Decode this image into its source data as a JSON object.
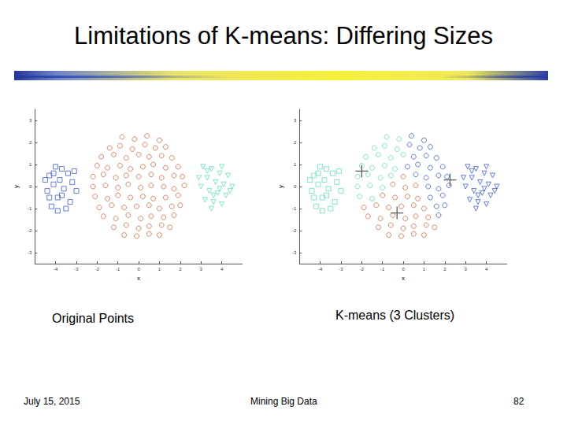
{
  "slide": {
    "title": "Limitations of K-means: Differing Sizes",
    "footer_left": "July 15, 2015",
    "footer_center": "Mining Big Data",
    "page_number": 82
  },
  "chart_data": [
    {
      "type": "scatter",
      "title": "Original Points",
      "xlabel": "x",
      "ylabel": "y",
      "xlim": [
        -5,
        5
      ],
      "ylim": [
        -3.5,
        3.5
      ],
      "xticks": [
        -4,
        -3,
        -2,
        -1,
        0,
        1,
        2,
        3,
        4
      ],
      "yticks": [
        -3,
        -2,
        -1,
        0,
        1,
        2,
        3
      ],
      "grid": false,
      "series": [
        {
          "color": "#3b5bd6",
          "marker": "square",
          "values": [
            [
              -4.3,
              0.5
            ],
            [
              -4.1,
              0.1
            ],
            [
              -4.4,
              -0.2
            ],
            [
              -3.9,
              -0.5
            ],
            [
              -4.2,
              -0.9
            ],
            [
              -3.7,
              0.8
            ],
            [
              -3.4,
              0.6
            ],
            [
              -3.1,
              0.7
            ],
            [
              -3.6,
              -0.1
            ],
            [
              -3.3,
              -0.7
            ],
            [
              -3.0,
              -0.2
            ],
            [
              -4.0,
              0.9
            ],
            [
              -3.8,
              0.3
            ],
            [
              -4.5,
              0.3
            ],
            [
              -3.5,
              -1.0
            ],
            [
              -3.9,
              -1.1
            ],
            [
              -4.3,
              -0.5
            ],
            [
              -3.2,
              0.2
            ],
            [
              -3.7,
              -0.4
            ],
            [
              -4.1,
              0.6
            ]
          ]
        },
        {
          "color": "#d9663f",
          "marker": "circle",
          "values": [
            [
              -0.8,
              2.25
            ],
            [
              -0.2,
              2.15
            ],
            [
              0.4,
              2.3
            ],
            [
              1.0,
              2.1
            ],
            [
              -1.4,
              1.75
            ],
            [
              -0.9,
              1.85
            ],
            [
              -0.3,
              1.7
            ],
            [
              0.3,
              1.9
            ],
            [
              0.8,
              1.75
            ],
            [
              1.3,
              1.8
            ],
            [
              -1.8,
              1.35
            ],
            [
              -1.2,
              1.45
            ],
            [
              -0.6,
              1.3
            ],
            [
              0.0,
              1.45
            ],
            [
              0.5,
              1.35
            ],
            [
              1.1,
              1.4
            ],
            [
              1.6,
              1.3
            ],
            [
              -2.0,
              0.95
            ],
            [
              -1.5,
              0.85
            ],
            [
              -0.9,
              0.95
            ],
            [
              -0.4,
              0.8
            ],
            [
              0.2,
              0.9
            ],
            [
              0.7,
              1.0
            ],
            [
              1.3,
              0.85
            ],
            [
              1.9,
              0.9
            ],
            [
              -2.2,
              0.45
            ],
            [
              -1.7,
              0.55
            ],
            [
              -1.1,
              0.4
            ],
            [
              -0.6,
              0.5
            ],
            [
              0.0,
              0.45
            ],
            [
              0.6,
              0.55
            ],
            [
              1.1,
              0.4
            ],
            [
              1.7,
              0.5
            ],
            [
              2.1,
              0.45
            ],
            [
              -2.2,
              0.0
            ],
            [
              -1.6,
              0.05
            ],
            [
              -1.0,
              -0.05
            ],
            [
              -0.5,
              0.1
            ],
            [
              0.1,
              -0.05
            ],
            [
              0.6,
              0.05
            ],
            [
              1.2,
              0.0
            ],
            [
              1.7,
              -0.1
            ],
            [
              2.2,
              0.05
            ],
            [
              -2.1,
              -0.45
            ],
            [
              -1.5,
              -0.55
            ],
            [
              -1.0,
              -0.4
            ],
            [
              -0.4,
              -0.5
            ],
            [
              0.2,
              -0.45
            ],
            [
              0.7,
              -0.55
            ],
            [
              1.3,
              -0.5
            ],
            [
              1.9,
              -0.4
            ],
            [
              -1.9,
              -0.95
            ],
            [
              -1.3,
              -0.85
            ],
            [
              -0.7,
              -0.95
            ],
            [
              -0.1,
              -0.9
            ],
            [
              0.5,
              -0.85
            ],
            [
              1.0,
              -1.0
            ],
            [
              1.6,
              -0.9
            ],
            [
              2.0,
              -0.85
            ],
            [
              -1.7,
              -1.35
            ],
            [
              -1.1,
              -1.45
            ],
            [
              -0.5,
              -1.3
            ],
            [
              0.1,
              -1.45
            ],
            [
              0.6,
              -1.35
            ],
            [
              1.2,
              -1.4
            ],
            [
              1.7,
              -1.3
            ],
            [
              -1.2,
              -1.85
            ],
            [
              -0.6,
              -1.75
            ],
            [
              0.0,
              -1.9
            ],
            [
              0.5,
              -1.8
            ],
            [
              1.1,
              -1.75
            ],
            [
              1.5,
              -1.85
            ],
            [
              -0.7,
              -2.2
            ],
            [
              -0.1,
              -2.25
            ],
            [
              0.5,
              -2.15
            ],
            [
              1.0,
              -2.2
            ]
          ]
        },
        {
          "color": "#5fe0bd",
          "marker": "triangle_down",
          "values": [
            [
              3.1,
              0.9
            ],
            [
              3.5,
              0.8
            ],
            [
              3.9,
              0.6
            ],
            [
              4.3,
              0.5
            ],
            [
              3.3,
              0.4
            ],
            [
              3.7,
              0.2
            ],
            [
              4.1,
              0.1
            ],
            [
              4.5,
              0.0
            ],
            [
              3.0,
              0.0
            ],
            [
              3.4,
              -0.2
            ],
            [
              3.8,
              -0.3
            ],
            [
              4.2,
              -0.4
            ],
            [
              3.2,
              -0.6
            ],
            [
              3.6,
              -0.7
            ],
            [
              4.0,
              -0.8
            ],
            [
              3.5,
              -1.0
            ],
            [
              4.4,
              -0.2
            ],
            [
              3.9,
              -0.1
            ],
            [
              3.3,
              0.7
            ],
            [
              4.0,
              0.9
            ],
            [
              2.9,
              0.4
            ],
            [
              3.6,
              -0.4
            ]
          ]
        }
      ]
    },
    {
      "type": "scatter",
      "title": "K-means (3 Clusters)",
      "xlabel": "x",
      "ylabel": "y",
      "xlim": [
        -5,
        5
      ],
      "ylim": [
        -3.5,
        3.5
      ],
      "xticks": [
        -4,
        -3,
        -2,
        -1,
        0,
        1,
        2,
        3,
        4
      ],
      "yticks": [
        -3,
        -2,
        -1,
        0,
        1,
        2,
        3
      ],
      "grid": false,
      "series": [
        {
          "color": "#5fe0bd",
          "marker": "square",
          "values": [
            [
              -4.3,
              0.5
            ],
            [
              -4.1,
              0.1
            ],
            [
              -4.4,
              -0.2
            ],
            [
              -3.9,
              -0.5
            ],
            [
              -4.2,
              -0.9
            ],
            [
              -3.7,
              0.8
            ],
            [
              -3.4,
              0.6
            ],
            [
              -3.1,
              0.7
            ],
            [
              -3.6,
              -0.1
            ],
            [
              -3.3,
              -0.7
            ],
            [
              -3.0,
              -0.2
            ],
            [
              -4.0,
              0.9
            ],
            [
              -3.8,
              0.3
            ],
            [
              -4.5,
              0.3
            ],
            [
              -3.5,
              -1.0
            ],
            [
              -3.9,
              -1.1
            ],
            [
              -4.3,
              -0.5
            ],
            [
              -3.2,
              0.2
            ],
            [
              -3.7,
              -0.4
            ],
            [
              -4.1,
              0.6
            ]
          ]
        },
        {
          "color": "#5fe0bd",
          "marker": "circle",
          "values": [
            [
              -0.8,
              2.25
            ],
            [
              -0.2,
              2.15
            ],
            [
              -1.4,
              1.75
            ],
            [
              -0.9,
              1.85
            ],
            [
              -0.3,
              1.7
            ],
            [
              -1.8,
              1.35
            ],
            [
              -1.2,
              1.45
            ],
            [
              -0.6,
              1.3
            ],
            [
              0.0,
              1.45
            ],
            [
              -2.0,
              0.95
            ],
            [
              -1.5,
              0.85
            ],
            [
              -0.9,
              0.95
            ],
            [
              -0.4,
              0.8
            ],
            [
              -2.2,
              0.45
            ],
            [
              -1.7,
              0.55
            ],
            [
              -1.1,
              0.4
            ],
            [
              -0.6,
              0.5
            ],
            [
              -2.2,
              0.0
            ],
            [
              -1.6,
              0.05
            ],
            [
              -1.0,
              -0.05
            ],
            [
              -2.1,
              -0.45
            ],
            [
              -1.5,
              -0.55
            ]
          ]
        },
        {
          "color": "#d9663f",
          "marker": "circle",
          "values": [
            [
              0.0,
              0.45
            ],
            [
              -0.5,
              0.1
            ],
            [
              0.1,
              -0.05
            ],
            [
              0.6,
              0.05
            ],
            [
              -1.0,
              -0.4
            ],
            [
              -0.4,
              -0.5
            ],
            [
              0.2,
              -0.45
            ],
            [
              0.7,
              -0.55
            ],
            [
              -1.9,
              -0.95
            ],
            [
              -1.3,
              -0.85
            ],
            [
              -0.7,
              -0.95
            ],
            [
              -0.1,
              -0.9
            ],
            [
              0.5,
              -0.85
            ],
            [
              1.0,
              -1.0
            ],
            [
              -1.7,
              -1.35
            ],
            [
              -1.1,
              -1.45
            ],
            [
              -0.5,
              -1.3
            ],
            [
              0.1,
              -1.45
            ],
            [
              0.6,
              -1.35
            ],
            [
              1.2,
              -1.4
            ],
            [
              -1.2,
              -1.85
            ],
            [
              -0.6,
              -1.75
            ],
            [
              0.0,
              -1.9
            ],
            [
              0.5,
              -1.8
            ],
            [
              1.1,
              -1.75
            ],
            [
              1.5,
              -1.85
            ],
            [
              -0.7,
              -2.2
            ],
            [
              -0.1,
              -2.25
            ],
            [
              0.5,
              -2.15
            ],
            [
              1.0,
              -2.2
            ]
          ]
        },
        {
          "color": "#3b5bd6",
          "marker": "circle",
          "values": [
            [
              0.4,
              2.3
            ],
            [
              1.0,
              2.1
            ],
            [
              0.3,
              1.9
            ],
            [
              0.8,
              1.75
            ],
            [
              1.3,
              1.8
            ],
            [
              0.5,
              1.35
            ],
            [
              1.1,
              1.4
            ],
            [
              1.6,
              1.3
            ],
            [
              0.2,
              0.9
            ],
            [
              0.7,
              1.0
            ],
            [
              1.3,
              0.85
            ],
            [
              1.9,
              0.9
            ],
            [
              0.6,
              0.55
            ],
            [
              1.1,
              0.4
            ],
            [
              1.7,
              0.5
            ],
            [
              2.1,
              0.45
            ],
            [
              1.2,
              0.0
            ],
            [
              1.7,
              -0.1
            ],
            [
              2.2,
              0.05
            ],
            [
              1.3,
              -0.5
            ],
            [
              1.9,
              -0.4
            ],
            [
              1.6,
              -0.9
            ],
            [
              2.0,
              -0.85
            ],
            [
              1.7,
              -1.3
            ]
          ]
        },
        {
          "color": "#3b5bd6",
          "marker": "triangle_down",
          "values": [
            [
              3.1,
              0.9
            ],
            [
              3.5,
              0.8
            ],
            [
              3.9,
              0.6
            ],
            [
              4.3,
              0.5
            ],
            [
              3.3,
              0.4
            ],
            [
              3.7,
              0.2
            ],
            [
              4.1,
              0.1
            ],
            [
              4.5,
              0.0
            ],
            [
              3.0,
              0.0
            ],
            [
              3.4,
              -0.2
            ],
            [
              3.8,
              -0.3
            ],
            [
              4.2,
              -0.4
            ],
            [
              3.2,
              -0.6
            ],
            [
              3.6,
              -0.7
            ],
            [
              4.0,
              -0.8
            ],
            [
              3.5,
              -1.0
            ],
            [
              4.4,
              -0.2
            ],
            [
              3.9,
              -0.1
            ],
            [
              3.3,
              0.7
            ],
            [
              4.0,
              0.9
            ],
            [
              2.9,
              0.4
            ],
            [
              3.6,
              -0.4
            ]
          ]
        },
        {
          "color": "#333333",
          "marker": "plus",
          "values": [
            [
              -2.0,
              0.7
            ],
            [
              -0.3,
              -1.2
            ],
            [
              2.25,
              0.3
            ]
          ]
        }
      ]
    }
  ]
}
